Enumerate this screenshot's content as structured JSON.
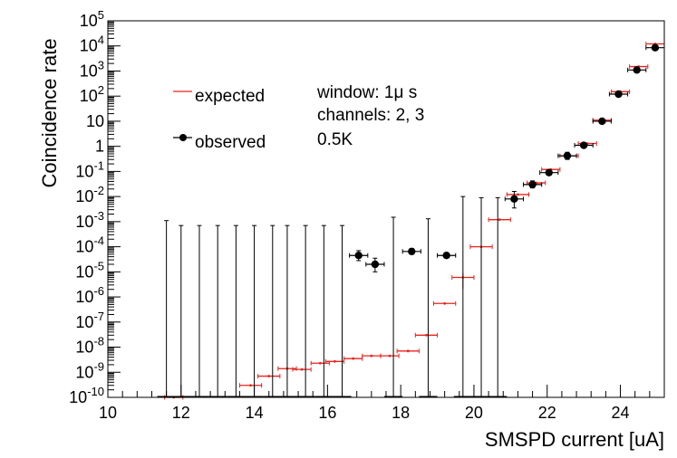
{
  "chart_data": {
    "type": "scatter",
    "title": "",
    "xlabel": "SMSPD current [uA]",
    "ylabel": "Coincidence rate",
    "xlim": [
      10,
      25.2
    ],
    "ylim_log10": [
      -10,
      5
    ],
    "yscale": "log",
    "x_ticks": [
      10,
      12,
      14,
      16,
      18,
      20,
      22,
      24
    ],
    "x_tick_labels": [
      "10",
      "12",
      "14",
      "16",
      "18",
      "20",
      "22",
      "24"
    ],
    "y_tick_exponents": [
      -10,
      -9,
      -8,
      -7,
      -6,
      -5,
      -4,
      -3,
      -2,
      -1,
      0,
      1,
      2,
      3,
      4,
      5
    ],
    "y_tick_labels": [
      "10^-10",
      "10^-9",
      "10^-8",
      "10^-7",
      "10^-6",
      "10^-5",
      "10^-4",
      "10^-3",
      "10^-2",
      "10^-1",
      "1",
      "10",
      "10^2",
      "10^3",
      "10^4",
      "10^5"
    ],
    "annotations": [
      "window: 1μ s",
      "channels: 2, 3",
      "0.5K"
    ],
    "series": [
      {
        "name": "expected",
        "color": "#e8231d",
        "marker": "line",
        "points": [
          {
            "x": 11.8,
            "y": 1e-10,
            "xerr": 0.25
          },
          {
            "x": 13.9,
            "y": 3e-10,
            "xerr": 0.3
          },
          {
            "x": 14.4,
            "y": 7e-10,
            "xerr": 0.3
          },
          {
            "x": 14.9,
            "y": 1.4e-09,
            "xerr": 0.25
          },
          {
            "x": 15.3,
            "y": 1.3e-09,
            "xerr": 0.25
          },
          {
            "x": 15.8,
            "y": 2.3e-09,
            "xerr": 0.25
          },
          {
            "x": 16.2,
            "y": 2.7e-09,
            "xerr": 0.25
          },
          {
            "x": 16.7,
            "y": 3.5e-09,
            "xerr": 0.25
          },
          {
            "x": 17.2,
            "y": 4.5e-09,
            "xerr": 0.25
          },
          {
            "x": 17.7,
            "y": 4.5e-09,
            "xerr": 0.25
          },
          {
            "x": 18.2,
            "y": 7e-09,
            "xerr": 0.3
          },
          {
            "x": 18.7,
            "y": 3e-08,
            "xerr": 0.3
          },
          {
            "x": 19.2,
            "y": 5.5e-07,
            "xerr": 0.3
          },
          {
            "x": 19.7,
            "y": 6e-06,
            "xerr": 0.3,
            "yerr_frac": [
              0.35,
              0.5
            ]
          },
          {
            "x": 20.2,
            "y": 0.0001,
            "xerr": 0.3
          },
          {
            "x": 20.7,
            "y": 0.0012,
            "xerr": 0.3
          },
          {
            "x": 21.2,
            "y": 0.012,
            "xerr": 0.3
          },
          {
            "x": 21.7,
            "y": 0.035,
            "xerr": 0.25
          },
          {
            "x": 22.1,
            "y": 0.12,
            "xerr": 0.25
          },
          {
            "x": 22.6,
            "y": 0.42,
            "xerr": 0.25
          },
          {
            "x": 23.1,
            "y": 1.3,
            "xerr": 0.25
          },
          {
            "x": 23.5,
            "y": 11,
            "xerr": 0.25
          },
          {
            "x": 24.0,
            "y": 150,
            "xerr": 0.25
          },
          {
            "x": 24.5,
            "y": 1500,
            "xerr": 0.25
          },
          {
            "x": 24.95,
            "y": 12000,
            "xerr": 0.25
          }
        ]
      },
      {
        "name": "observed",
        "color": "#000000",
        "marker": "circle",
        "points": [
          {
            "x": 11.6,
            "y": 1e-10,
            "xerr": 0.25,
            "ytop": 0.0011
          },
          {
            "x": 12.0,
            "y": 1e-10,
            "xerr": 0.25,
            "ytop": 0.0007
          },
          {
            "x": 12.5,
            "y": 1e-10,
            "xerr": 0.25,
            "ytop": 0.0007
          },
          {
            "x": 13.0,
            "y": 1e-10,
            "xerr": 0.25,
            "ytop": 0.0007
          },
          {
            "x": 13.5,
            "y": 1e-10,
            "xerr": 0.25,
            "ytop": 0.0007
          },
          {
            "x": 14.0,
            "y": 1e-10,
            "xerr": 0.25,
            "ytop": 0.0007
          },
          {
            "x": 14.5,
            "y": 1e-10,
            "xerr": 0.25,
            "ytop": 0.0007
          },
          {
            "x": 14.9,
            "y": 1e-10,
            "xerr": 0.25,
            "ytop": 0.0007
          },
          {
            "x": 15.4,
            "y": 1e-10,
            "xerr": 0.25,
            "ytop": 0.0007
          },
          {
            "x": 15.9,
            "y": 1e-10,
            "xerr": 0.25,
            "ytop": 0.0007
          },
          {
            "x": 16.4,
            "y": 1e-10,
            "xerr": 0.25,
            "ytop": 0.0007
          },
          {
            "x": 16.85,
            "y": 4.5e-05,
            "xerr": 0.25,
            "yerr": [
              2.8e-05,
              7e-05
            ]
          },
          {
            "x": 17.3,
            "y": 2e-05,
            "xerr": 0.25,
            "yerr": [
              1e-05,
              3.5e-05
            ]
          },
          {
            "x": 17.8,
            "y": 1e-10,
            "xerr": 0.25,
            "ytop": 0.0015
          },
          {
            "x": 18.3,
            "y": 6.5e-05,
            "xerr": 0.25,
            "yerr": [
              5e-05,
              8.5e-05
            ]
          },
          {
            "x": 18.75,
            "y": 1e-10,
            "xerr": 0.25,
            "ytop": 0.0013
          },
          {
            "x": 19.25,
            "y": 4.5e-05,
            "xerr": 0.25
          },
          {
            "x": 19.7,
            "y": 1e-10,
            "xerr": 0.25,
            "ytop": 0.01
          },
          {
            "x": 20.2,
            "y": 1e-10,
            "xerr": 0.25,
            "ytop": 0.009
          },
          {
            "x": 20.65,
            "y": 1e-10,
            "xerr": 0.25,
            "ytop": 0.009
          },
          {
            "x": 21.1,
            "y": 0.008,
            "xerr": 0.25,
            "yerr": [
              0.0035,
              0.016
            ]
          },
          {
            "x": 21.6,
            "y": 0.03,
            "xerr": 0.25,
            "yerr": [
              0.022,
              0.042
            ]
          },
          {
            "x": 22.05,
            "y": 0.09,
            "xerr": 0.25
          },
          {
            "x": 22.55,
            "y": 0.42,
            "xerr": 0.25,
            "yerr": [
              0.3,
              0.58
            ]
          },
          {
            "x": 23.0,
            "y": 1.1,
            "xerr": 0.25
          },
          {
            "x": 23.5,
            "y": 10,
            "xerr": 0.25
          },
          {
            "x": 23.95,
            "y": 120,
            "xerr": 0.25
          },
          {
            "x": 24.45,
            "y": 1100,
            "xerr": 0.25
          },
          {
            "x": 24.95,
            "y": 8500,
            "xerr": 0.25
          }
        ]
      }
    ],
    "legend": {
      "position": "top-left",
      "entries": [
        {
          "label": "expected",
          "series": "expected"
        },
        {
          "label": "observed",
          "series": "observed"
        }
      ]
    }
  }
}
